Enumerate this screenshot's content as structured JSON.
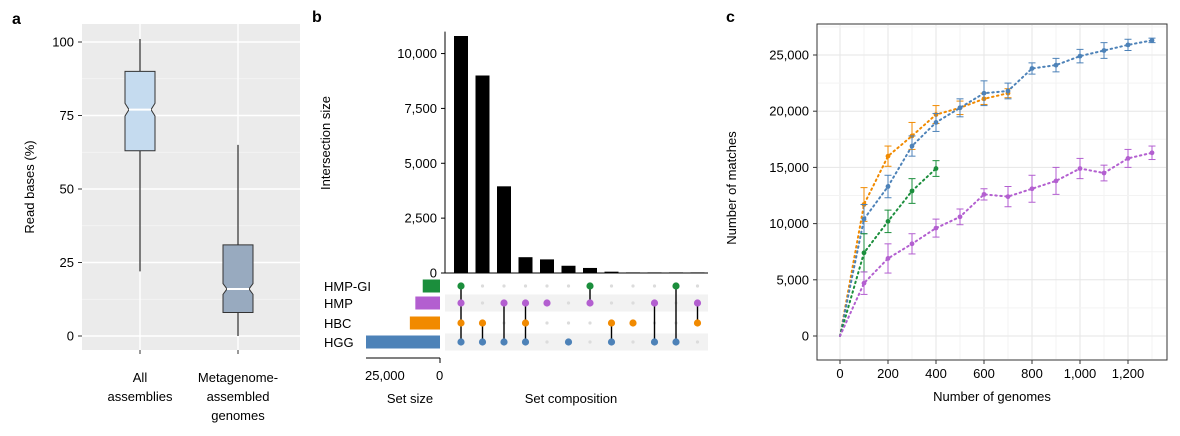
{
  "panel_labels": [
    "a",
    "b",
    "c"
  ],
  "colors": {
    "hmp_gi": "#1b8e3c",
    "hmp": "#b35fd0",
    "hbc": "#f18a00",
    "hgg": "#4d82b8",
    "box_all": "#c5dbef",
    "box_mag": "#98aabf"
  },
  "chart_data": [
    {
      "type": "box",
      "ylabel": "Read bases (%)",
      "ylim": [
        0,
        100
      ],
      "yticks": [
        0,
        25,
        50,
        75,
        100
      ],
      "categories": [
        "All\nassemblies",
        "Metagenome-\nassembled\ngenomes"
      ],
      "boxes": [
        {
          "name": "All assemblies",
          "whisker_low": 22,
          "q1": 63,
          "median": 77,
          "q3": 90,
          "whisker_high": 101
        },
        {
          "name": "Metagenome-assembled genomes",
          "whisker_low": 0,
          "q1": 8,
          "median": 16,
          "q3": 31,
          "whisker_high": 65
        }
      ]
    },
    {
      "type": "upset",
      "ylabel": "Intersection size",
      "yticks": [
        0,
        2500,
        5000,
        7500,
        10000
      ],
      "ytick_labels": [
        "0",
        "2,500",
        "5,000",
        "7,500",
        "10,000"
      ],
      "ylim": [
        0,
        11000
      ],
      "xlabel_sets": "Set size",
      "xlabel_comp": "Set composition",
      "setsize_ticks": [
        "25,000",
        "0"
      ],
      "sets": [
        {
          "name": "HMP-GI",
          "size": 6300,
          "color_key": "hmp_gi"
        },
        {
          "name": "HMP",
          "size": 9000,
          "color_key": "hmp"
        },
        {
          "name": "HBC",
          "size": 11000,
          "color_key": "hbc"
        },
        {
          "name": "HGG",
          "size": 27000,
          "color_key": "hgg"
        }
      ],
      "intersections": [
        {
          "size": 10800,
          "members": [
            "HMP-GI",
            "HMP",
            "HBC",
            "HGG"
          ]
        },
        {
          "size": 9000,
          "members": [
            "HBC",
            "HGG"
          ]
        },
        {
          "size": 3950,
          "members": [
            "HMP",
            "HGG"
          ]
        },
        {
          "size": 720,
          "members": [
            "HMP",
            "HBC",
            "HGG"
          ]
        },
        {
          "size": 620,
          "members": [
            "HMP"
          ]
        },
        {
          "size": 330,
          "members": [
            "HGG"
          ]
        },
        {
          "size": 230,
          "members": [
            "HMP-GI",
            "HMP"
          ]
        },
        {
          "size": 60,
          "members": [
            "HBC",
            "HGG"
          ]
        },
        {
          "size": 20,
          "members": [
            "HBC"
          ]
        },
        {
          "size": 10,
          "members": [
            "HMP",
            "HGG"
          ]
        },
        {
          "size": 5,
          "members": [
            "HMP-GI",
            "HGG"
          ]
        },
        {
          "size": 3,
          "members": [
            "HMP",
            "HBC"
          ]
        }
      ]
    },
    {
      "type": "line",
      "xlabel": "Number of genomes",
      "ylabel": "Number of matches",
      "xlim": [
        -50,
        1350
      ],
      "ylim": [
        -1000,
        28000
      ],
      "xticks": [
        0,
        200,
        400,
        600,
        800,
        1000,
        1200
      ],
      "xtick_labels": [
        "0",
        "200",
        "400",
        "600",
        "800",
        "1,000",
        "1,200"
      ],
      "yticks": [
        0,
        5000,
        10000,
        15000,
        20000,
        25000
      ],
      "ytick_labels": [
        "0",
        "5,000",
        "10,000",
        "15,000",
        "20,000",
        "25,000"
      ],
      "grid": true,
      "series": [
        {
          "color_key": "hbc",
          "x": [
            0,
            100,
            200,
            300,
            400,
            500,
            600,
            700
          ],
          "y": [
            0,
            11700,
            16000,
            17800,
            19700,
            20300,
            21100,
            21600
          ],
          "err": [
            0,
            1500,
            900,
            1200,
            800,
            600,
            500,
            400
          ]
        },
        {
          "color_key": "hgg",
          "x": [
            0,
            100,
            200,
            300,
            400,
            500,
            600,
            700,
            800,
            900,
            1000,
            1100,
            1200,
            1300
          ],
          "y": [
            0,
            10400,
            13300,
            16900,
            19000,
            20300,
            21600,
            21800,
            23800,
            24100,
            24900,
            25400,
            25900,
            26300
          ],
          "err": [
            0,
            1300,
            1000,
            900,
            800,
            800,
            1100,
            700,
            500,
            600,
            600,
            700,
            500,
            200
          ]
        },
        {
          "color_key": "hmp_gi",
          "x": [
            0,
            100,
            200,
            300,
            400
          ],
          "y": [
            0,
            7400,
            10200,
            12900,
            14900
          ],
          "err": [
            0,
            1700,
            1000,
            1100,
            700
          ]
        },
        {
          "color_key": "hmp",
          "x": [
            0,
            100,
            200,
            300,
            400,
            500,
            600,
            700,
            800,
            900,
            1000,
            1100,
            1200,
            1300
          ],
          "y": [
            0,
            4700,
            6900,
            8200,
            9600,
            10600,
            12600,
            12400,
            13100,
            13800,
            14900,
            14500,
            15800,
            16300
          ],
          "err": [
            0,
            1000,
            1300,
            900,
            800,
            700,
            500,
            900,
            1200,
            1200,
            900,
            700,
            800,
            600
          ]
        }
      ]
    }
  ]
}
